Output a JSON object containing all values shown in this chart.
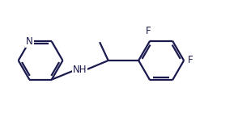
{
  "line_color": "#1a1a4e",
  "bg_color": "#ffffff",
  "line_width": 1.6,
  "font_size": 8.5,
  "fig_width": 3.1,
  "fig_height": 1.5,
  "dpi": 100,
  "xlim": [
    0,
    10
  ],
  "ylim": [
    0,
    4.84
  ]
}
